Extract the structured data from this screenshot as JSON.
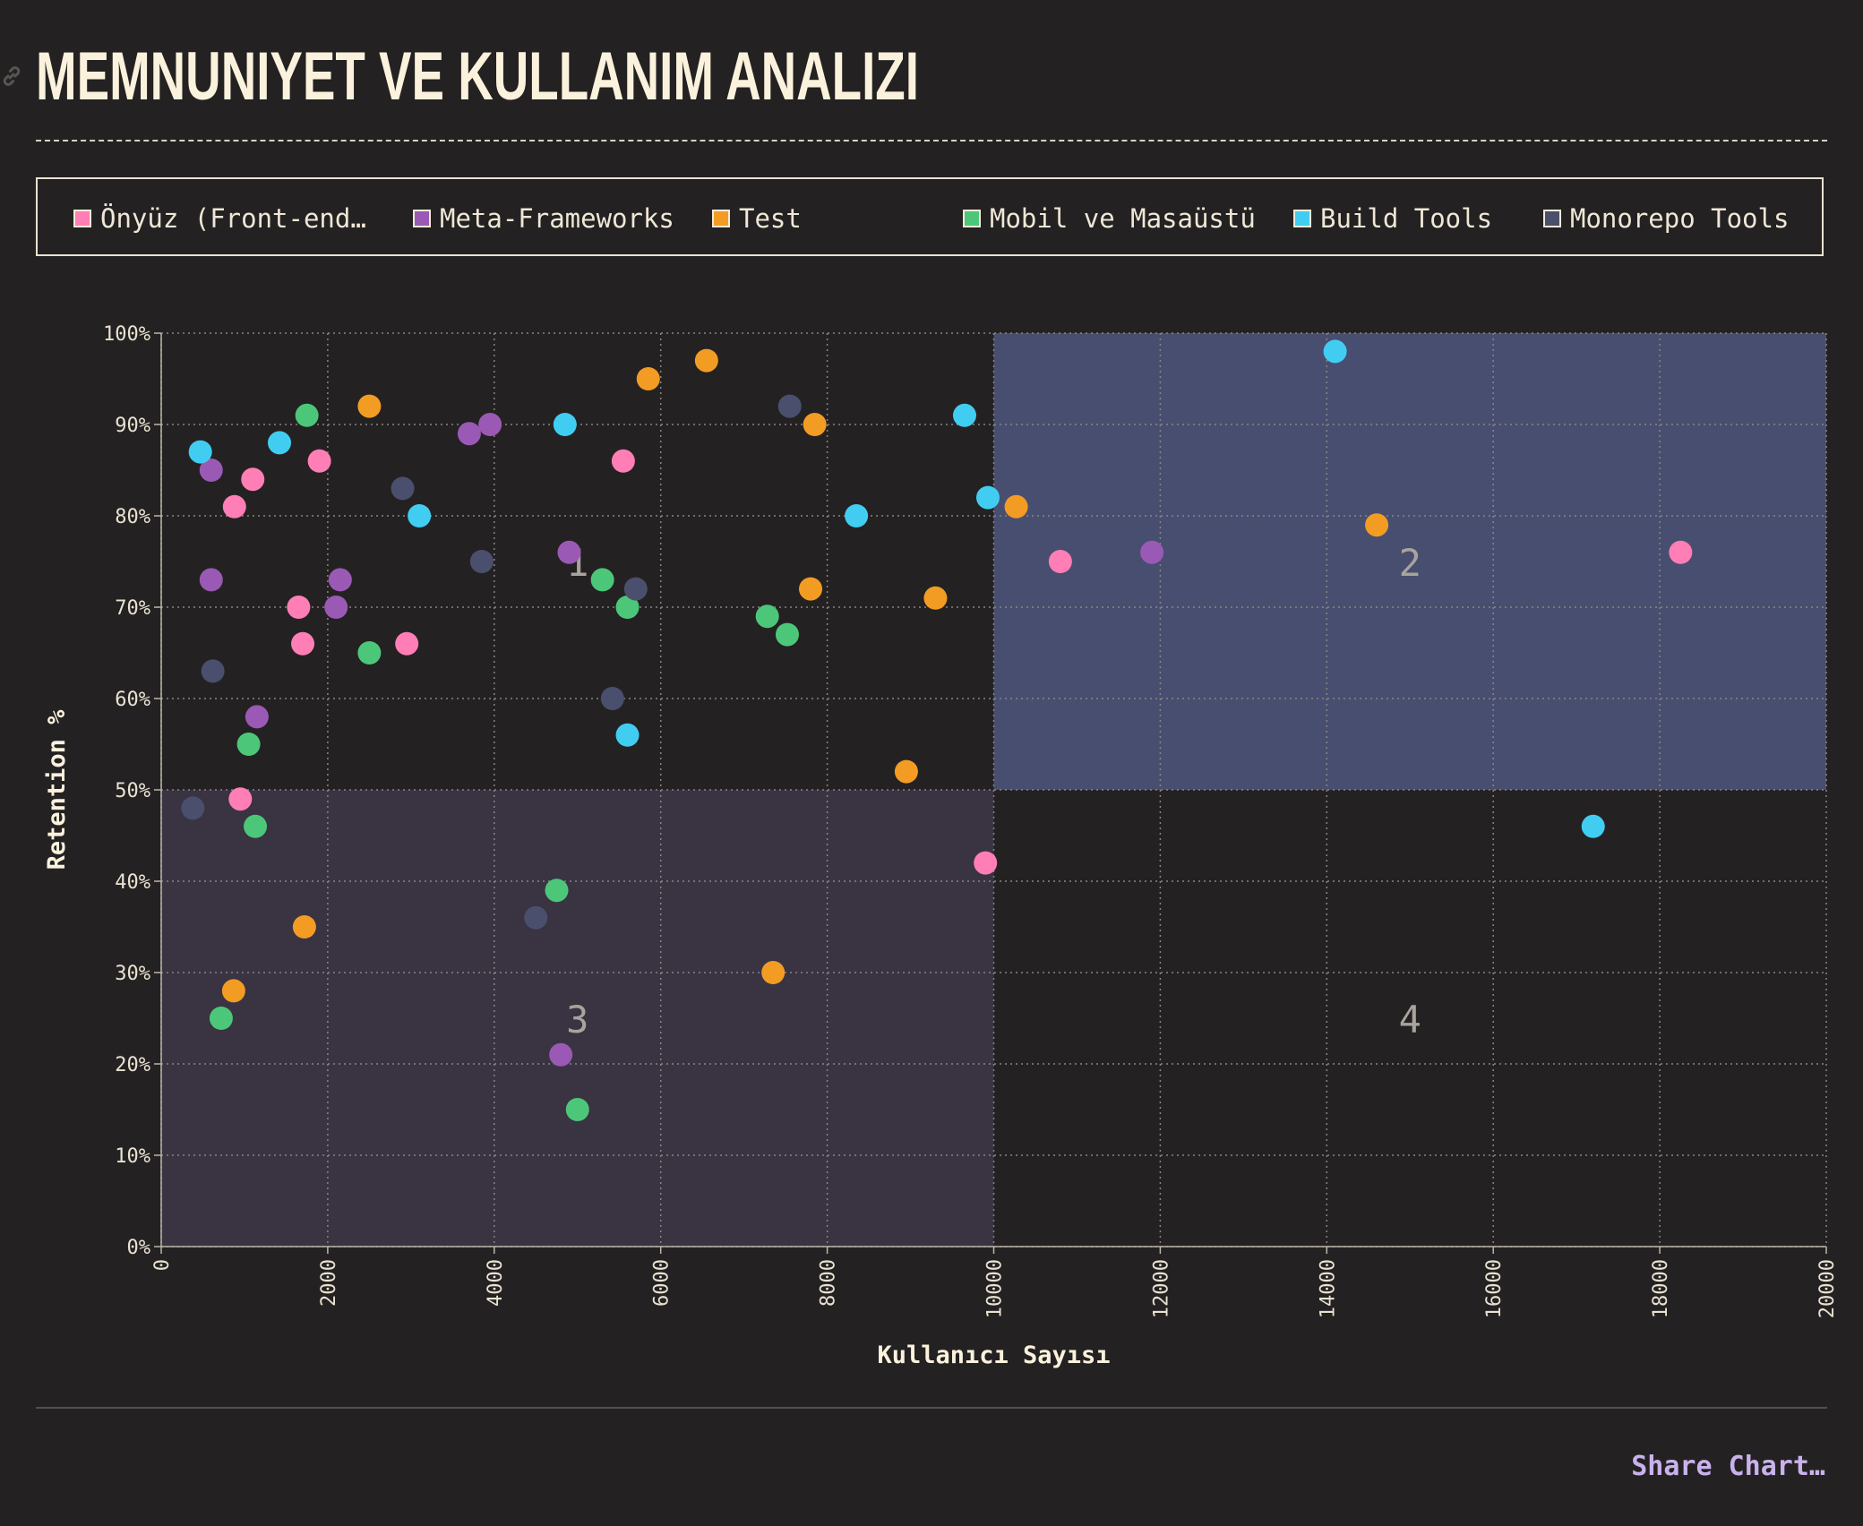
{
  "title": "MEMNUNIYET VE KULLANIM ANALIZI",
  "share_label": "Share Chart…",
  "legend": [
    {
      "label": "Önyüz (Front-end…",
      "color": "#ff7eb6"
    },
    {
      "label": "Meta-Frameworks",
      "color": "#9b59b6"
    },
    {
      "label": "Test",
      "color": "#f39c24"
    },
    {
      "label": "Mobil ve Masaüstü",
      "color": "#4cc779"
    },
    {
      "label": "Build Tools",
      "color": "#41cdf2"
    },
    {
      "label": "Monorepo Tools",
      "color": "#4a4f6e"
    }
  ],
  "chart_data": {
    "type": "scatter",
    "xlabel": "Kullanıcı Sayısı",
    "ylabel": "Retention %",
    "xlim": [
      0,
      20000
    ],
    "ylim": [
      0,
      100
    ],
    "xticks": [
      "0",
      "2000",
      "4000",
      "6000",
      "8000",
      "10000",
      "12000",
      "14000",
      "16000",
      "18000",
      "20000"
    ],
    "yticks": [
      "0%",
      "10%",
      "20%",
      "30%",
      "40%",
      "50%",
      "60%",
      "70%",
      "80%",
      "90%",
      "100%"
    ],
    "grid": true,
    "quadrants": [
      {
        "label": "1",
        "x": [
          0,
          10000
        ],
        "y": [
          50,
          100
        ],
        "fill": "#242122"
      },
      {
        "label": "2",
        "x": [
          10000,
          20000
        ],
        "y": [
          50,
          100
        ],
        "fill": "#484e70"
      },
      {
        "label": "3",
        "x": [
          0,
          10000
        ],
        "y": [
          0,
          50
        ],
        "fill": "#393342"
      },
      {
        "label": "4",
        "x": [
          10000,
          20000
        ],
        "y": [
          0,
          50
        ],
        "fill": "#242122"
      }
    ],
    "series": [
      {
        "name": "Önyüz (Front-end…",
        "color": "#ff7eb6",
        "points": [
          [
            1100,
            84
          ],
          [
            880,
            81
          ],
          [
            1900,
            86
          ],
          [
            1650,
            70
          ],
          [
            1700,
            66
          ],
          [
            950,
            49
          ],
          [
            2950,
            66
          ],
          [
            5550,
            86
          ],
          [
            9900,
            42
          ],
          [
            10800,
            75
          ],
          [
            18250,
            76
          ]
        ]
      },
      {
        "name": "Meta-Frameworks",
        "color": "#9b59b6",
        "points": [
          [
            600,
            85
          ],
          [
            600,
            73
          ],
          [
            2150,
            73
          ],
          [
            2100,
            70
          ],
          [
            1150,
            58
          ],
          [
            3700,
            89
          ],
          [
            3950,
            90
          ],
          [
            4900,
            76
          ],
          [
            4800,
            21
          ],
          [
            11900,
            76
          ]
        ]
      },
      {
        "name": "Test",
        "color": "#f39c24",
        "points": [
          [
            2500,
            92
          ],
          [
            5850,
            95
          ],
          [
            6550,
            97
          ],
          [
            7850,
            90
          ],
          [
            7800,
            72
          ],
          [
            9300,
            71
          ],
          [
            10270,
            81
          ],
          [
            14600,
            79
          ],
          [
            8950,
            52
          ],
          [
            1720,
            35
          ],
          [
            870,
            28
          ],
          [
            7350,
            30
          ]
        ]
      },
      {
        "name": "Mobil ve Masaüstü",
        "color": "#4cc779",
        "points": [
          [
            1750,
            91
          ],
          [
            2500,
            65
          ],
          [
            1050,
            55
          ],
          [
            1130,
            46
          ],
          [
            720,
            25
          ],
          [
            4750,
            39
          ],
          [
            5000,
            15
          ],
          [
            5300,
            73
          ],
          [
            5600,
            70
          ],
          [
            7280,
            69
          ],
          [
            7520,
            67
          ]
        ]
      },
      {
        "name": "Build Tools",
        "color": "#41cdf2",
        "points": [
          [
            470,
            87
          ],
          [
            1420,
            88
          ],
          [
            3100,
            80
          ],
          [
            4850,
            90
          ],
          [
            5600,
            56
          ],
          [
            8350,
            80
          ],
          [
            9650,
            91
          ],
          [
            9930,
            82
          ],
          [
            14100,
            98
          ],
          [
            17200,
            46
          ]
        ]
      },
      {
        "name": "Monorepo Tools",
        "color": "#4a4f6e",
        "points": [
          [
            2900,
            83
          ],
          [
            3850,
            75
          ],
          [
            620,
            63
          ],
          [
            380,
            48
          ],
          [
            4500,
            36
          ],
          [
            5420,
            60
          ],
          [
            5700,
            72
          ],
          [
            7550,
            92
          ]
        ]
      }
    ]
  }
}
